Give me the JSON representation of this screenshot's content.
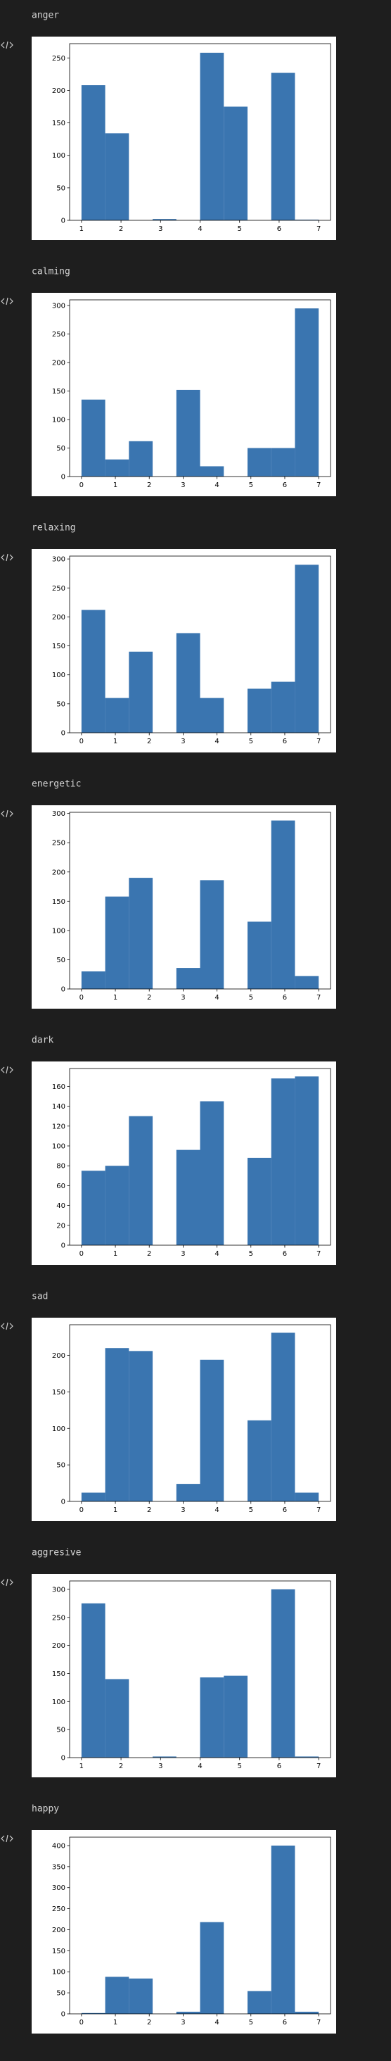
{
  "chart_data": [
    {
      "type": "histogram",
      "title": "anger",
      "bins": [
        1,
        1.6,
        2.2,
        2.8,
        3.4,
        4,
        4.6,
        5.2,
        5.8,
        6.4,
        7
      ],
      "values": [
        208,
        134,
        0,
        2,
        0,
        258,
        175,
        0,
        227,
        1
      ],
      "color": "#3a75b0",
      "xlim": [
        0.7,
        7.3
      ],
      "xticks": [
        1,
        2,
        3,
        4,
        5,
        6,
        7
      ],
      "ylim": [
        0,
        272
      ],
      "yticks": [
        0,
        50,
        100,
        150,
        200,
        250
      ]
    },
    {
      "type": "histogram",
      "title": "calming",
      "bins": [
        0,
        0.7,
        1.4,
        2.1,
        2.8,
        3.5,
        4.2,
        4.9,
        5.6,
        6.3,
        7
      ],
      "values": [
        135,
        30,
        62,
        0,
        152,
        18,
        0,
        50,
        50,
        295
      ],
      "color": "#3a75b0",
      "xlim": [
        -0.35,
        7.35
      ],
      "xticks": [
        0,
        1,
        2,
        3,
        4,
        5,
        6,
        7
      ],
      "ylim": [
        0,
        310
      ],
      "yticks": [
        0,
        50,
        100,
        150,
        200,
        250,
        300
      ]
    },
    {
      "type": "histogram",
      "title": "relaxing",
      "bins": [
        0,
        0.7,
        1.4,
        2.1,
        2.8,
        3.5,
        4.2,
        4.9,
        5.6,
        6.3,
        7
      ],
      "values": [
        212,
        60,
        140,
        0,
        172,
        60,
        0,
        76,
        88,
        290
      ],
      "color": "#3a75b0",
      "xlim": [
        -0.35,
        7.35
      ],
      "xticks": [
        0,
        1,
        2,
        3,
        4,
        5,
        6,
        7
      ],
      "ylim": [
        0,
        305
      ],
      "yticks": [
        0,
        50,
        100,
        150,
        200,
        250,
        300
      ]
    },
    {
      "type": "histogram",
      "title": "energetic",
      "bins": [
        0,
        0.7,
        1.4,
        2.1,
        2.8,
        3.5,
        4.2,
        4.9,
        5.6,
        6.3,
        7
      ],
      "values": [
        30,
        158,
        190,
        0,
        36,
        186,
        0,
        115,
        288,
        22
      ],
      "color": "#3a75b0",
      "xlim": [
        -0.35,
        7.35
      ],
      "xticks": [
        0,
        1,
        2,
        3,
        4,
        5,
        6,
        7
      ],
      "ylim": [
        0,
        302
      ],
      "yticks": [
        0,
        50,
        100,
        150,
        200,
        250,
        300
      ]
    },
    {
      "type": "histogram",
      "title": "dark",
      "bins": [
        0,
        0.7,
        1.4,
        2.1,
        2.8,
        3.5,
        4.2,
        4.9,
        5.6,
        6.3,
        7
      ],
      "values": [
        75,
        80,
        130,
        0,
        96,
        145,
        0,
        88,
        168,
        170
      ],
      "color": "#3a75b0",
      "xlim": [
        -0.35,
        7.35
      ],
      "xticks": [
        0,
        1,
        2,
        3,
        4,
        5,
        6,
        7
      ],
      "ylim": [
        0,
        178
      ],
      "yticks": [
        0,
        20,
        40,
        60,
        80,
        100,
        120,
        140,
        160
      ]
    },
    {
      "type": "histogram",
      "title": "sad",
      "bins": [
        0,
        0.7,
        1.4,
        2.1,
        2.8,
        3.5,
        4.2,
        4.9,
        5.6,
        6.3,
        7
      ],
      "values": [
        12,
        210,
        206,
        0,
        24,
        194,
        0,
        111,
        231,
        12
      ],
      "color": "#3a75b0",
      "xlim": [
        -0.35,
        7.35
      ],
      "xticks": [
        0,
        1,
        2,
        3,
        4,
        5,
        6,
        7
      ],
      "ylim": [
        0,
        242
      ],
      "yticks": [
        0,
        50,
        100,
        150,
        200
      ]
    },
    {
      "type": "histogram",
      "title": "aggresive",
      "bins": [
        1,
        1.6,
        2.2,
        2.8,
        3.4,
        4,
        4.6,
        5.2,
        5.8,
        6.4,
        7
      ],
      "values": [
        275,
        140,
        0,
        2,
        0,
        143,
        146,
        0,
        300,
        2
      ],
      "color": "#3a75b0",
      "xlim": [
        0.7,
        7.3
      ],
      "xticks": [
        1,
        2,
        3,
        4,
        5,
        6,
        7
      ],
      "ylim": [
        0,
        315
      ],
      "yticks": [
        0,
        50,
        100,
        150,
        200,
        250,
        300
      ]
    },
    {
      "type": "histogram",
      "title": "happy",
      "bins": [
        0,
        0.7,
        1.4,
        2.1,
        2.8,
        3.5,
        4.2,
        4.9,
        5.6,
        6.3,
        7
      ],
      "values": [
        2,
        88,
        84,
        0,
        5,
        218,
        0,
        54,
        400,
        5
      ],
      "color": "#3a75b0",
      "xlim": [
        -0.35,
        7.35
      ],
      "xticks": [
        0,
        1,
        2,
        3,
        4,
        5,
        6,
        7
      ],
      "ylim": [
        0,
        420
      ],
      "yticks": [
        0,
        50,
        100,
        150,
        200,
        250,
        300,
        350,
        400
      ]
    }
  ]
}
